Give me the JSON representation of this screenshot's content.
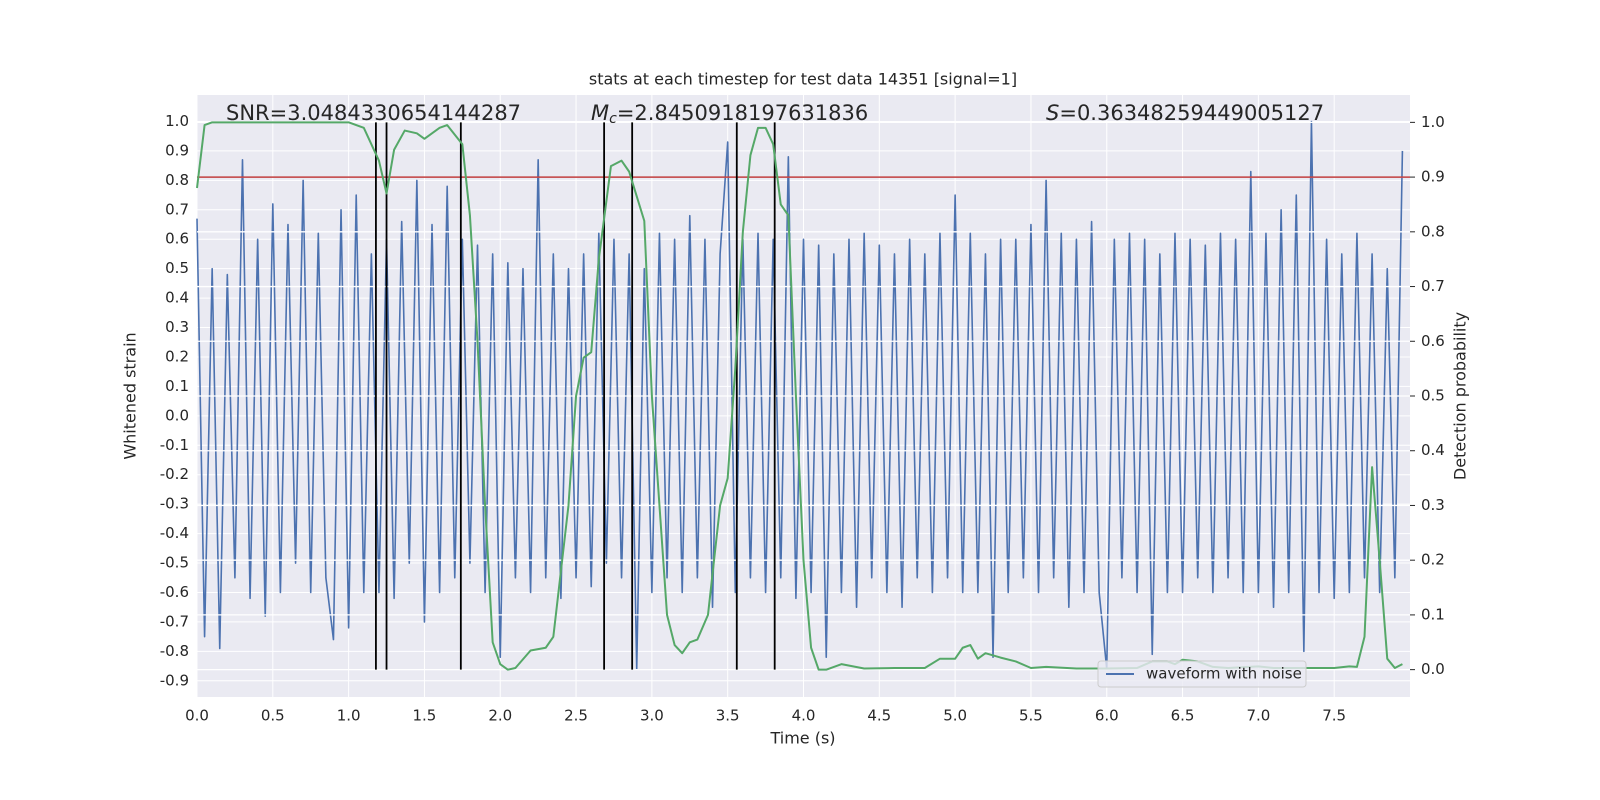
{
  "chart_data": {
    "type": "line",
    "title": "stats at each timestep for test data 14351 [signal=1]",
    "xlabel": "Time (s)",
    "ylabel": "Whitened strain",
    "y2label": "Detection probability",
    "xlim": [
      0,
      8
    ],
    "ylim": [
      -0.955,
      1.09
    ],
    "y2lim": [
      -0.05,
      1.05
    ],
    "xticks": [
      {
        "value": 0,
        "label": "0.0"
      },
      0.5,
      {
        "value": 1,
        "label": "1.0"
      },
      1.5,
      {
        "value": 2,
        "label": "2.0"
      },
      2.5,
      {
        "value": 3,
        "label": "3.0"
      },
      3.5,
      {
        "value": 4,
        "label": "4.0"
      },
      4.5,
      {
        "value": 5,
        "label": "5.0"
      },
      5.5,
      {
        "value": 6,
        "label": "6.0"
      },
      6.5,
      {
        "value": 7,
        "label": "7.0"
      },
      7.5
    ],
    "yticks": [
      -0.9,
      -0.8,
      -0.7,
      -0.6,
      -0.5,
      -0.4,
      -0.3,
      -0.2,
      -0.1,
      {
        "value": 0,
        "label": "0.0"
      },
      0.1,
      0.2,
      0.3,
      0.4,
      0.5,
      0.6,
      0.7,
      0.8,
      0.9,
      {
        "value": 1,
        "label": "1.0"
      }
    ],
    "y2ticks": [
      {
        "value": 0,
        "label": "0.0"
      },
      0.1,
      0.2,
      0.3,
      0.4,
      0.5,
      0.6,
      0.7,
      0.8,
      0.9,
      {
        "value": 1,
        "label": "1.0"
      }
    ],
    "grid": true,
    "legend": "lower right",
    "series": [
      {
        "name": "waveform with noise",
        "color": "#4c72b0",
        "x": [
          0,
          0.05,
          0.1,
          0.15,
          0.2,
          0.25,
          0.3,
          0.35,
          0.4,
          0.45,
          0.5,
          0.55,
          0.6,
          0.65,
          0.7,
          0.75,
          0.8,
          0.85,
          0.9,
          0.95,
          1,
          1.05,
          1.1,
          1.15,
          1.2,
          1.25,
          1.3,
          1.35,
          1.4,
          1.45,
          1.5,
          1.55,
          1.6,
          1.65,
          1.7,
          1.75,
          1.8,
          1.85,
          1.9,
          1.95,
          2,
          2.05,
          2.1,
          2.15,
          2.2,
          2.25,
          2.3,
          2.35,
          2.4,
          2.45,
          2.5,
          2.55,
          2.6,
          2.65,
          2.7,
          2.75,
          2.8,
          2.85,
          2.9,
          2.95,
          3,
          3.05,
          3.1,
          3.15,
          3.2,
          3.25,
          3.3,
          3.35,
          3.4,
          3.45,
          3.5,
          3.55,
          3.6,
          3.65,
          3.7,
          3.75,
          3.8,
          3.85,
          3.9,
          3.95,
          4,
          4.05,
          4.1,
          4.15,
          4.2,
          4.25,
          4.3,
          4.35,
          4.4,
          4.45,
          4.5,
          4.55,
          4.6,
          4.65,
          4.7,
          4.75,
          4.8,
          4.85,
          4.9,
          4.95,
          5,
          5.05,
          5.1,
          5.15,
          5.2,
          5.25,
          5.3,
          5.35,
          5.4,
          5.45,
          5.5,
          5.55,
          5.6,
          5.65,
          5.7,
          5.75,
          5.8,
          5.85,
          5.9,
          5.95,
          6,
          6.05,
          6.1,
          6.15,
          6.2,
          6.25,
          6.3,
          6.35,
          6.4,
          6.45,
          6.5,
          6.55,
          6.6,
          6.65,
          6.7,
          6.75,
          6.8,
          6.85,
          6.9,
          6.95,
          7,
          7.05,
          7.1,
          7.15,
          7.2,
          7.25,
          7.3,
          7.35,
          7.4,
          7.45,
          7.5,
          7.55,
          7.6,
          7.65,
          7.7,
          7.75,
          7.8,
          7.85,
          7.9,
          7.95
        ],
        "values": [
          0.67,
          -0.75,
          0.5,
          -0.79,
          0.48,
          -0.55,
          0.87,
          -0.62,
          0.6,
          -0.68,
          0.72,
          -0.6,
          0.65,
          -0.5,
          0.8,
          -0.6,
          0.62,
          -0.55,
          -0.76,
          0.7,
          -0.72,
          0.75,
          -0.6,
          0.55,
          -0.6,
          0.6,
          -0.62,
          0.66,
          -0.5,
          0.8,
          -0.7,
          0.65,
          -0.6,
          0.78,
          -0.55,
          0.6,
          -0.5,
          0.58,
          -0.6,
          0.55,
          -0.82,
          0.52,
          -0.55,
          0.5,
          -0.6,
          0.87,
          -0.55,
          0.55,
          -0.62,
          0.5,
          -0.55,
          0.55,
          -0.58,
          0.62,
          -0.5,
          0.6,
          -0.55,
          0.55,
          -0.86,
          0.5,
          -0.6,
          0.62,
          -0.55,
          0.6,
          -0.6,
          0.68,
          -0.55,
          0.6,
          -0.65,
          0.55,
          0.93,
          -0.6,
          0.6,
          -0.55,
          0.62,
          -0.6,
          0.6,
          -0.55,
          0.88,
          -0.62,
          0.6,
          -0.6,
          0.58,
          -0.82,
          0.55,
          -0.6,
          0.6,
          -0.65,
          0.62,
          -0.55,
          0.58,
          -0.6,
          0.55,
          -0.65,
          0.6,
          -0.55,
          0.55,
          -0.6,
          0.62,
          -0.55,
          0.75,
          -0.6,
          0.62,
          -0.6,
          0.55,
          -0.82,
          0.6,
          -0.6,
          0.6,
          -0.55,
          0.65,
          -0.6,
          0.8,
          -0.55,
          0.62,
          -0.65,
          0.6,
          -0.6,
          0.66,
          -0.6,
          -0.86,
          0.6,
          -0.55,
          0.62,
          -0.6,
          0.6,
          -0.81,
          0.55,
          -0.6,
          0.62,
          -0.6,
          0.6,
          -0.55,
          0.58,
          -0.6,
          0.62,
          -0.55,
          0.6,
          -0.6,
          0.83,
          -0.6,
          0.62,
          -0.65,
          0.7,
          -0.6,
          0.75,
          -0.8,
          1.0,
          -0.6,
          0.6,
          -0.62,
          0.55,
          -0.6,
          0.62,
          -0.55,
          0.55,
          -0.6,
          0.5,
          -0.55,
          0.9
        ]
      },
      {
        "color": "#55a868",
        "axis": "y2",
        "x": [
          0,
          0.05,
          0.1,
          0.2,
          0.4,
          0.6,
          0.8,
          1,
          1.1,
          1.2,
          1.25,
          1.3,
          1.37,
          1.45,
          1.5,
          1.6,
          1.65,
          1.75,
          1.8,
          1.85,
          1.9,
          1.95,
          2,
          2.05,
          2.1,
          2.2,
          2.3,
          2.35,
          2.45,
          2.5,
          2.55,
          2.6,
          2.65,
          2.73,
          2.8,
          2.85,
          2.95,
          3,
          3.1,
          3.15,
          3.2,
          3.25,
          3.3,
          3.37,
          3.45,
          3.5,
          3.55,
          3.6,
          3.65,
          3.7,
          3.75,
          3.8,
          3.85,
          3.9,
          3.95,
          4,
          4.05,
          4.1,
          4.15,
          4.25,
          4.4,
          4.6,
          4.8,
          4.9,
          5,
          5.05,
          5.1,
          5.15,
          5.2,
          5.3,
          5.4,
          5.5,
          5.6,
          5.8,
          6,
          6.2,
          6.3,
          6.4,
          6.45,
          6.5,
          6.6,
          6.7,
          6.8,
          7,
          7.1,
          7.5,
          7.6,
          7.65,
          7.7,
          7.75,
          7.8,
          7.85,
          7.9,
          7.95
        ],
        "values": [
          0.88,
          0.995,
          1,
          1,
          1,
          1,
          1,
          1,
          0.99,
          0.93,
          0.87,
          0.95,
          0.985,
          0.98,
          0.97,
          0.99,
          0.995,
          0.96,
          0.83,
          0.6,
          0.3,
          0.05,
          0.01,
          0,
          0.003,
          0.035,
          0.04,
          0.06,
          0.3,
          0.5,
          0.57,
          0.58,
          0.75,
          0.92,
          0.93,
          0.91,
          0.82,
          0.5,
          0.1,
          0.045,
          0.03,
          0.05,
          0.055,
          0.1,
          0.3,
          0.35,
          0.55,
          0.8,
          0.94,
          0.99,
          0.99,
          0.96,
          0.85,
          0.83,
          0.5,
          0.2,
          0.04,
          0,
          0,
          0.01,
          0.002,
          0.003,
          0.003,
          0.02,
          0.02,
          0.04,
          0.045,
          0.02,
          0.03,
          0.022,
          0.015,
          0.003,
          0.005,
          0.002,
          0.002,
          0.003,
          0.015,
          0.015,
          0.01,
          0.018,
          0.015,
          0.005,
          0.003,
          0.006,
          0.003,
          0.003,
          0.006,
          0.005,
          0.06,
          0.37,
          0.2,
          0.02,
          0.003,
          0.01
        ]
      }
    ],
    "threshold": {
      "value": 0.9,
      "axis": "y2",
      "color": "#c03d3e"
    },
    "vlines": {
      "x": [
        1.18,
        1.25,
        1.74,
        2.685,
        2.87,
        3.56,
        3.81
      ],
      "y2range": [
        0,
        1
      ],
      "color": "#000000"
    },
    "annotations": [
      {
        "text": "SNR=3.0484330654144287"
      },
      {
        "symbol": "M",
        "sub": "c",
        "text": "=2.8450918197631836"
      },
      {
        "symbol": "S",
        "text": "=0.36348259449005127"
      }
    ]
  }
}
